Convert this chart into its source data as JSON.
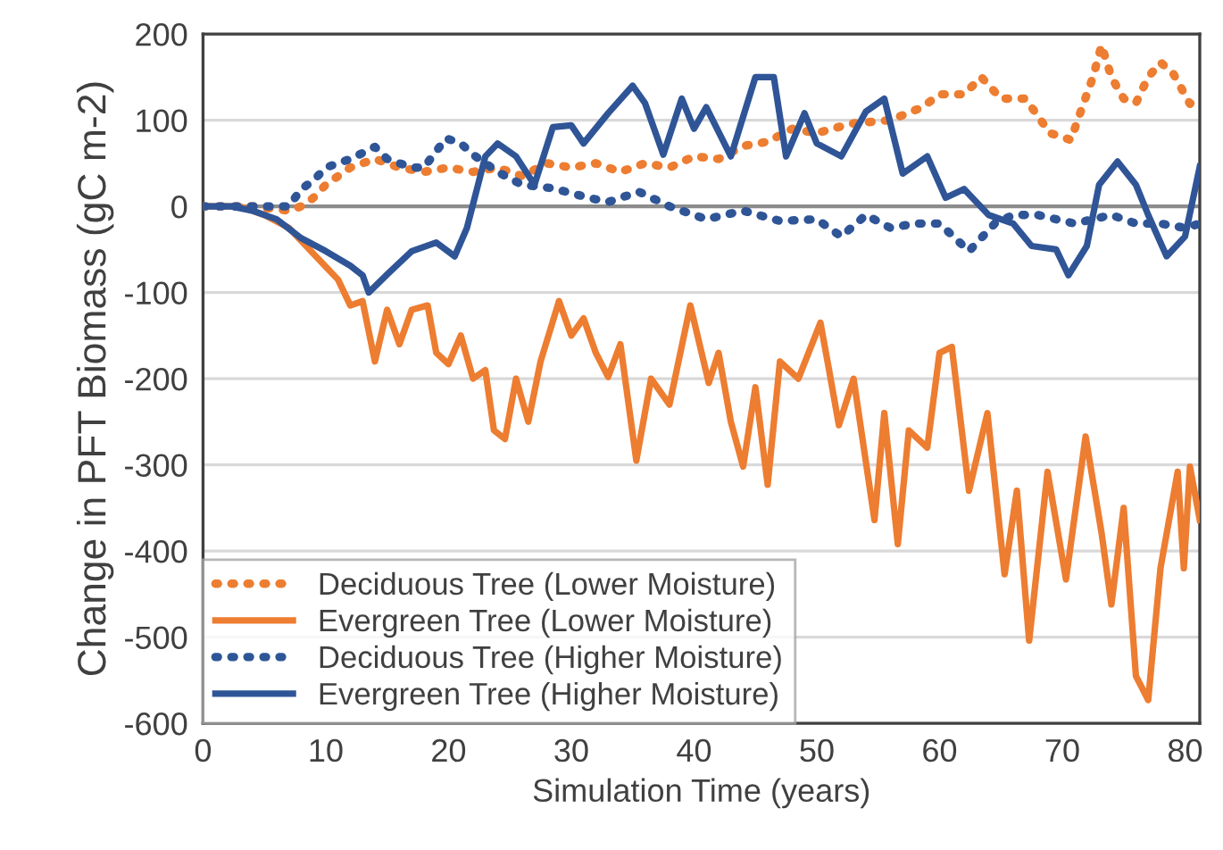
{
  "chart_data": {
    "type": "line",
    "xlabel": "Simulation Time (years)",
    "ylabel": "Change in PFT Biomass (gC m-2)",
    "xlim": [
      0,
      81.2
    ],
    "xticks": [
      0,
      10,
      20,
      30,
      40,
      50,
      60,
      70,
      80
    ],
    "ylim": [
      -600,
      200
    ],
    "yticks": [
      -600,
      -500,
      -400,
      -300,
      -200,
      -100,
      0,
      100,
      200
    ],
    "grid": "y",
    "legend": "bottom left",
    "ref_lines": [
      {
        "axis": "y",
        "value": 0,
        "color": "#8c8c8c"
      }
    ],
    "series": [
      {
        "name": "Deciduous Tree (Lower Moisture)",
        "color": "#ed7d31",
        "line_style": "dotted",
        "x": [
          0,
          4,
          7,
          8,
          9,
          10,
          12,
          14,
          16,
          18,
          20,
          22,
          24,
          26,
          28,
          30,
          32,
          34,
          36,
          38,
          40,
          42,
          44,
          46,
          48,
          50,
          52.8,
          56,
          58.6,
          60,
          62,
          63.4,
          65,
          67,
          69,
          70.7,
          71.5,
          72.5,
          73.2,
          74,
          75,
          76,
          77,
          78,
          79,
          80.4,
          81.2
        ],
        "values": [
          0,
          0,
          -5,
          0,
          10,
          25,
          45,
          55,
          45,
          40,
          45,
          40,
          45,
          35,
          50,
          45,
          50,
          40,
          50,
          45,
          58,
          55,
          70,
          75,
          90,
          85,
          96,
          100,
          115,
          130,
          130,
          150,
          125,
          125,
          85,
          77,
          110,
          150,
          187,
          150,
          125,
          120,
          150,
          167,
          155,
          119,
          130
        ]
      },
      {
        "name": "Evergreen Tree (Lower Moisture)",
        "color": "#ed7d31",
        "line_style": "solid",
        "x": [
          0,
          3,
          5,
          7,
          8,
          9,
          10,
          11,
          12,
          13,
          14,
          15,
          16,
          17,
          18.3,
          19,
          20,
          21,
          22,
          23,
          23.7,
          24.6,
          25.5,
          26.5,
          27.5,
          29,
          30,
          31,
          32,
          33,
          34,
          35.3,
          36.5,
          38,
          39.7,
          41.2,
          42,
          43,
          44,
          45,
          46,
          47,
          48.5,
          50.3,
          51,
          51.8,
          53,
          54.7,
          55.5,
          56.6,
          57.5,
          59,
          60,
          61,
          62.4,
          63.9,
          65.3,
          66.3,
          67.3,
          68.8,
          70.3,
          71.9,
          73.2,
          74,
          75,
          76,
          77,
          78,
          79.4,
          79.9,
          80.4,
          81.2
        ],
        "values": [
          0,
          0,
          -10,
          -25,
          -40,
          -55,
          -70,
          -85,
          -115,
          -110,
          -180,
          -120,
          -160,
          -120,
          -115,
          -170,
          -183,
          -150,
          -200,
          -190,
          -260,
          -270,
          -200,
          -250,
          -180,
          -110,
          -150,
          -130,
          -170,
          -198,
          -160,
          -295,
          -200,
          -230,
          -115,
          -205,
          -170,
          -250,
          -302,
          -210,
          -323,
          -180,
          -200,
          -135,
          -190,
          -254,
          -200,
          -364,
          -240,
          -392,
          -260,
          -280,
          -170,
          -163,
          -330,
          -240,
          -427,
          -330,
          -504,
          -308,
          -433,
          -267,
          -379,
          -462,
          -350,
          -545,
          -573,
          -420,
          -308,
          -420,
          -302,
          -364
        ]
      },
      {
        "name": "Deciduous Tree (Higher Moisture)",
        "color": "#2f5597",
        "line_style": "dotted",
        "x": [
          0,
          4,
          7,
          8,
          9,
          10,
          12,
          14,
          15,
          17,
          18,
          19.8,
          21,
          22,
          24,
          26,
          28.5,
          31.4,
          33,
          35.5,
          38,
          41,
          44,
          47,
          50,
          52,
          54,
          56,
          58,
          60,
          62.4,
          64.5,
          66,
          68,
          71,
          74,
          76,
          78,
          80,
          81.2
        ],
        "values": [
          0,
          0,
          0,
          20,
          30,
          45,
          55,
          69,
          55,
          45,
          45,
          79,
          73,
          60,
          40,
          25,
          21,
          10,
          5,
          17,
          0,
          -15,
          -5,
          -17,
          -15,
          -35,
          -10,
          -25,
          -20,
          -20,
          -52,
          -20,
          -10,
          -10,
          -20,
          -10,
          -20,
          -20,
          -25,
          -20
        ]
      },
      {
        "name": "Evergreen Tree (Higher Moisture)",
        "color": "#2f5597",
        "line_style": "solid",
        "x": [
          0,
          2.3,
          4,
          6,
          8,
          10,
          12,
          13,
          13.5,
          15,
          17,
          19,
          20.5,
          21.5,
          23,
          24,
          25.5,
          27,
          28.5,
          30,
          31,
          33,
          35,
          36,
          37.5,
          39,
          40,
          41,
          43,
          45,
          46.5,
          47.5,
          49,
          50,
          52,
          54,
          55.5,
          57,
          59,
          60.5,
          62,
          64,
          66,
          67.5,
          69.5,
          70.5,
          72,
          73,
          74.5,
          76,
          77,
          78.5,
          80,
          81.2
        ],
        "values": [
          0,
          0,
          -5,
          -15,
          -37,
          -52,
          -69,
          -80,
          -100,
          -79,
          -52,
          -42,
          -58,
          -25,
          58,
          73,
          58,
          25,
          92,
          94,
          73,
          108,
          140,
          120,
          60,
          125,
          90,
          115,
          58,
          150,
          150,
          58,
          108,
          73,
          58,
          110,
          125,
          38,
          58,
          10,
          20,
          -10,
          -20,
          -46,
          -50,
          -80,
          -46,
          25,
          52,
          25,
          -10,
          -58,
          -35,
          46
        ]
      }
    ]
  }
}
